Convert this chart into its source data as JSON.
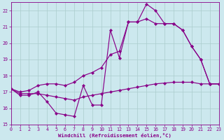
{
  "bg_color": "#cce8ee",
  "grid_color": "#aacccc",
  "line_color": "#880088",
  "xlim": [
    0,
    23
  ],
  "ylim": [
    15,
    22.5
  ],
  "xticks": [
    0,
    1,
    2,
    3,
    4,
    5,
    6,
    7,
    8,
    9,
    10,
    11,
    12,
    13,
    14,
    15,
    16,
    17,
    18,
    19,
    20,
    21,
    22,
    23
  ],
  "yticks": [
    15,
    16,
    17,
    18,
    19,
    20,
    21,
    22
  ],
  "xlabel": "Windchill (Refroidissement éolien,°C)",
  "curves": [
    {
      "x": [
        0,
        1,
        2,
        3,
        4,
        5,
        6,
        7,
        8,
        9,
        10,
        11,
        12,
        13,
        14,
        15,
        16,
        17,
        18,
        19,
        20,
        21,
        22,
        23
      ],
      "y": [
        17.2,
        16.8,
        16.8,
        17.0,
        16.4,
        15.7,
        15.6,
        15.5,
        17.4,
        16.2,
        16.2,
        20.8,
        19.1,
        21.3,
        21.3,
        22.4,
        22.0,
        21.2,
        21.2,
        20.8,
        19.8,
        19.0,
        17.5,
        17.5
      ]
    },
    {
      "x": [
        0,
        1,
        2,
        3,
        4,
        5,
        6,
        7,
        8,
        9,
        10,
        11,
        12,
        13,
        14,
        15,
        16,
        17,
        18,
        19,
        20,
        21,
        22,
        23
      ],
      "y": [
        17.2,
        17.0,
        17.1,
        17.4,
        17.5,
        17.5,
        17.4,
        17.6,
        18.0,
        18.2,
        18.5,
        19.3,
        19.5,
        21.3,
        21.3,
        21.5,
        21.2,
        21.2,
        21.2,
        20.8,
        19.8,
        19.0,
        17.5,
        17.5
      ]
    },
    {
      "x": [
        0,
        1,
        2,
        3,
        4,
        5,
        6,
        7,
        8,
        9,
        10,
        11,
        12,
        13,
        14,
        15,
        16,
        17,
        18,
        19,
        20,
        21,
        22,
        23
      ],
      "y": [
        17.2,
        16.9,
        16.9,
        16.9,
        16.8,
        16.7,
        16.6,
        16.5,
        16.7,
        16.8,
        16.9,
        17.0,
        17.1,
        17.2,
        17.3,
        17.4,
        17.5,
        17.55,
        17.6,
        17.6,
        17.6,
        17.5,
        17.5,
        17.5
      ]
    }
  ]
}
